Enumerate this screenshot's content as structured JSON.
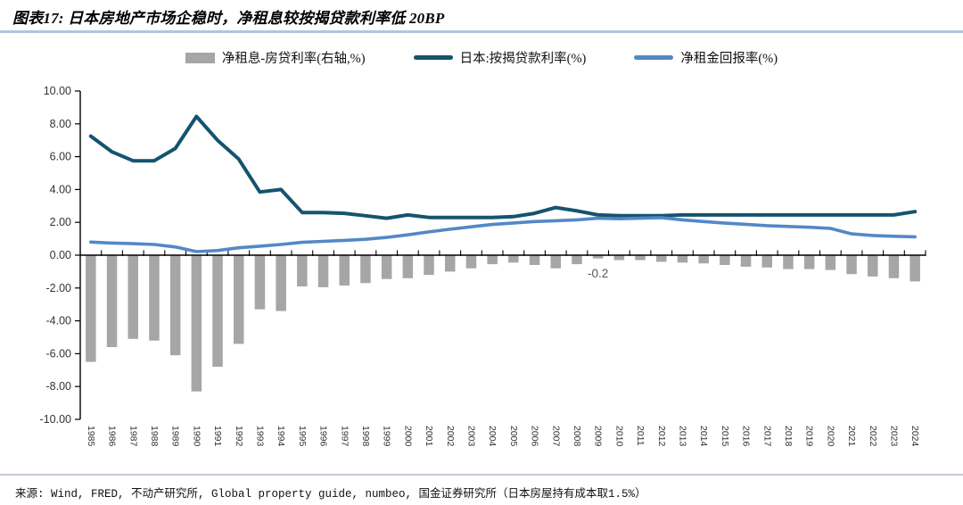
{
  "header": {
    "title": "图表17: 日本房地产市场企稳时，净租息较按揭贷款利率低 20BP"
  },
  "legend": [
    {
      "label": "净租息-房贷利率(右轴,%)",
      "marker": "bar",
      "color": "#A6A6A6"
    },
    {
      "label": "日本:按揭贷款利率(%)",
      "marker": "line",
      "color": "#14546F"
    },
    {
      "label": "净租金回报率(%)",
      "marker": "line",
      "color": "#5388C7"
    }
  ],
  "colors": {
    "bar_gray": "#A6A6A6",
    "mortgage_dark_blue": "#14546F",
    "rent_light_blue": "#5388C7",
    "axis_black": "#000000",
    "tick_text": "#333333",
    "annotation_gray": "#595959",
    "title_rule_blue": "#AEC6DE"
  },
  "chart_data": {
    "type": "bar",
    "subtype": "bar+line combo",
    "x": [
      1985,
      1986,
      1987,
      1988,
      1989,
      1990,
      1991,
      1992,
      1993,
      1994,
      1995,
      1996,
      1997,
      1998,
      1999,
      2000,
      2001,
      2002,
      2003,
      2004,
      2005,
      2006,
      2007,
      2008,
      2009,
      2010,
      2011,
      2012,
      2013,
      2014,
      2015,
      2016,
      2017,
      2018,
      2019,
      2020,
      2021,
      2022,
      2023,
      2024
    ],
    "series": [
      {
        "name": "净租息-房贷利率(右轴,%)",
        "type": "bar",
        "color": "#A6A6A6",
        "values": [
          -6.5,
          -5.6,
          -5.1,
          -5.2,
          -6.1,
          -8.3,
          -6.8,
          -5.4,
          -3.3,
          -3.4,
          -1.9,
          -1.95,
          -1.85,
          -1.7,
          -1.45,
          -1.4,
          -1.2,
          -1.0,
          -0.8,
          -0.55,
          -0.45,
          -0.6,
          -0.8,
          -0.55,
          -0.2,
          -0.3,
          -0.3,
          -0.4,
          -0.45,
          -0.5,
          -0.6,
          -0.7,
          -0.75,
          -0.85,
          -0.85,
          -0.9,
          -1.15,
          -1.3,
          -1.4,
          -1.6
        ]
      },
      {
        "name": "日本:按揭贷款利率(%)",
        "type": "line",
        "color": "#14546F",
        "values": [
          7.25,
          6.3,
          5.75,
          5.75,
          6.5,
          8.45,
          7.0,
          5.85,
          3.85,
          4.0,
          2.6,
          2.6,
          2.55,
          2.4,
          2.25,
          2.45,
          2.3,
          2.3,
          2.3,
          2.3,
          2.35,
          2.55,
          2.9,
          2.7,
          2.45,
          2.4,
          2.4,
          2.4,
          2.45,
          2.45,
          2.45,
          2.45,
          2.45,
          2.45,
          2.45,
          2.45,
          2.45,
          2.45,
          2.45,
          2.65
        ]
      },
      {
        "name": "净租金回报率(%)",
        "type": "line",
        "color": "#5388C7",
        "values": [
          0.8,
          0.74,
          0.7,
          0.65,
          0.5,
          0.22,
          0.28,
          0.45,
          0.55,
          0.65,
          0.78,
          0.84,
          0.9,
          0.97,
          1.08,
          1.24,
          1.42,
          1.58,
          1.73,
          1.87,
          1.96,
          2.05,
          2.1,
          2.15,
          2.25,
          2.22,
          2.25,
          2.28,
          2.15,
          2.05,
          1.95,
          1.88,
          1.8,
          1.75,
          1.7,
          1.63,
          1.3,
          1.2,
          1.15,
          1.12
        ]
      }
    ],
    "title": "",
    "xlabel": "",
    "ylabel": "",
    "ylim": [
      -10,
      10
    ],
    "y_tick_step": 2,
    "y_tick_format": "0.00",
    "grid": false,
    "legend_position": "top",
    "annotation": {
      "text": "-0.2",
      "year": 2009
    }
  },
  "footer": {
    "source": "来源: Wind, FRED, 不动产研究所, Global property guide, numbeo, 国金证券研究所（日本房屋持有成本取1.5%）"
  }
}
